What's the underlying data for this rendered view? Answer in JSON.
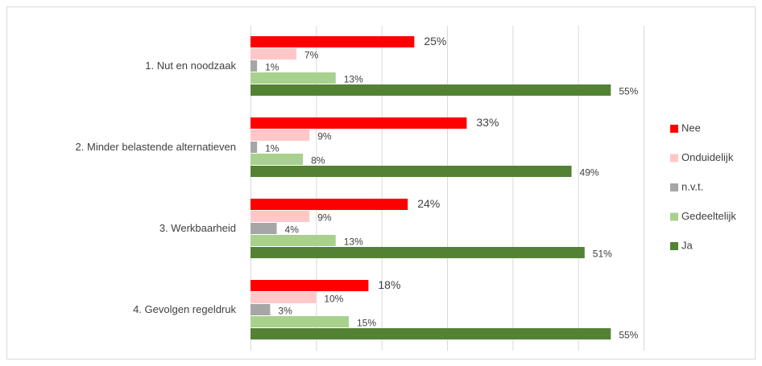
{
  "chart_data": {
    "type": "bar",
    "orientation": "horizontal",
    "categories": [
      "1. Nut en noodzaak",
      "2. Minder belastende alternatieven",
      "3. Werkbaarheid",
      "4. Gevolgen regeldruk"
    ],
    "series": [
      {
        "name": "Nee",
        "color": "#ff0000",
        "values": [
          25,
          33,
          24,
          18
        ],
        "value_labels": [
          "25%",
          "33%",
          "24%",
          "18%"
        ]
      },
      {
        "name": "Onduidelijk",
        "color": "#ffc7c7",
        "values": [
          7,
          9,
          9,
          10
        ],
        "value_labels": [
          "7%",
          "9%",
          "9%",
          "10%"
        ]
      },
      {
        "name": "n.v.t.",
        "color": "#a6a6a6",
        "values": [
          1,
          1,
          4,
          3
        ],
        "value_labels": [
          "1%",
          "1%",
          "4%",
          "3%"
        ]
      },
      {
        "name": "Gedeeltelijk",
        "color": "#a9d18e",
        "values": [
          13,
          8,
          13,
          15
        ],
        "value_labels": [
          "13%",
          "8%",
          "13%",
          "15%"
        ]
      },
      {
        "name": "Ja",
        "color": "#548235",
        "values": [
          55,
          49,
          51,
          55
        ],
        "value_labels": [
          "55%",
          "49%",
          "51%",
          "55%"
        ]
      }
    ],
    "xlim": [
      0,
      60
    ],
    "xticks": [
      0,
      10,
      20,
      30,
      40,
      50,
      60
    ],
    "grid": true,
    "legend": "right"
  }
}
